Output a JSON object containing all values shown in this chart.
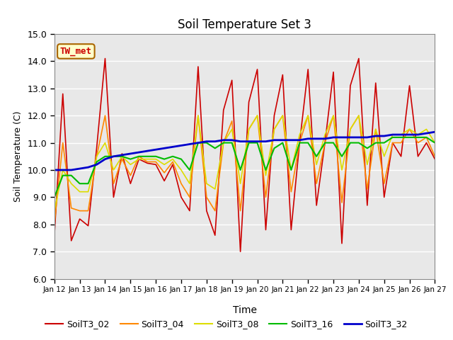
{
  "title": "Soil Temperature Set 3",
  "xlabel": "Time",
  "ylabel": "Soil Temperature (C)",
  "ylim": [
    6.0,
    15.0
  ],
  "yticks": [
    6.0,
    7.0,
    8.0,
    9.0,
    10.0,
    11.0,
    12.0,
    13.0,
    14.0,
    15.0
  ],
  "plot_bg_color": "#e8e8e8",
  "fig_bg_color": "#ffffff",
  "annotation_text": "TW_met",
  "annotation_color": "#cc0000",
  "annotation_bg": "#ffffcc",
  "annotation_border": "#aa6600",
  "series_colors": {
    "SoilT3_02": "#cc0000",
    "SoilT3_04": "#ff8800",
    "SoilT3_08": "#dddd00",
    "SoilT3_16": "#00bb00",
    "SoilT3_32": "#0000cc"
  },
  "xtick_labels": [
    "Jan 12",
    "Jan 13",
    "Jan 14",
    "Jan 15",
    "Jan 16",
    "Jan 17",
    "Jan 18",
    "Jan 19",
    "Jan 20",
    "Jan 21",
    "Jan 22",
    "Jan 23",
    "Jan 24",
    "Jan 25",
    "Jan 26",
    "Jan 27"
  ],
  "SoilT3_02": [
    7.6,
    12.8,
    7.4,
    8.2,
    7.95,
    10.8,
    14.1,
    9.0,
    10.6,
    9.5,
    10.4,
    10.25,
    10.2,
    9.6,
    10.2,
    9.0,
    8.5,
    13.8,
    8.5,
    7.6,
    12.2,
    13.3,
    7.0,
    12.5,
    13.7,
    7.8,
    12.0,
    13.5,
    7.8,
    11.0,
    13.7,
    8.7,
    11.0,
    13.6,
    7.3,
    13.1,
    14.1,
    8.7,
    13.2,
    9.0,
    11.0,
    10.5,
    13.1,
    10.5,
    11.0,
    10.4
  ],
  "SoilT3_04": [
    8.0,
    11.0,
    8.6,
    8.5,
    8.5,
    10.5,
    12.0,
    9.5,
    10.4,
    9.8,
    10.5,
    10.3,
    10.3,
    9.9,
    10.3,
    9.5,
    9.0,
    12.0,
    9.0,
    8.5,
    11.0,
    11.8,
    8.5,
    11.5,
    12.0,
    9.0,
    11.5,
    12.0,
    9.2,
    11.0,
    12.0,
    9.5,
    11.0,
    12.0,
    8.8,
    11.5,
    12.0,
    9.3,
    11.5,
    9.5,
    11.0,
    11.0,
    11.5,
    11.0,
    11.2,
    10.5
  ],
  "SoilT3_08": [
    8.5,
    10.0,
    9.5,
    9.2,
    9.2,
    10.5,
    11.0,
    10.0,
    10.5,
    10.2,
    10.4,
    10.4,
    10.4,
    10.2,
    10.4,
    10.0,
    9.5,
    12.0,
    9.5,
    9.3,
    11.0,
    11.5,
    9.5,
    11.5,
    12.0,
    9.8,
    11.5,
    12.0,
    10.0,
    11.3,
    12.0,
    10.2,
    11.3,
    12.0,
    10.0,
    11.5,
    12.0,
    10.2,
    11.5,
    10.5,
    11.3,
    11.3,
    11.5,
    11.3,
    11.5,
    11.0
  ],
  "SoilT3_16": [
    9.0,
    9.8,
    9.8,
    9.5,
    9.5,
    10.3,
    10.5,
    10.5,
    10.5,
    10.4,
    10.5,
    10.5,
    10.5,
    10.4,
    10.5,
    10.4,
    10.0,
    11.0,
    11.0,
    10.8,
    11.0,
    11.0,
    10.0,
    11.0,
    11.0,
    10.0,
    10.8,
    11.0,
    10.0,
    11.0,
    11.0,
    10.5,
    11.0,
    11.0,
    10.5,
    11.0,
    11.0,
    10.8,
    11.0,
    11.0,
    11.2,
    11.2,
    11.2,
    11.2,
    11.2,
    11.0
  ],
  "SoilT3_32": [
    10.0,
    10.0,
    10.0,
    10.05,
    10.1,
    10.2,
    10.4,
    10.5,
    10.55,
    10.6,
    10.65,
    10.7,
    10.75,
    10.8,
    10.85,
    10.9,
    10.95,
    11.0,
    11.05,
    11.05,
    11.1,
    11.1,
    11.05,
    11.05,
    11.05,
    11.05,
    11.1,
    11.1,
    11.1,
    11.1,
    11.15,
    11.15,
    11.15,
    11.2,
    11.2,
    11.2,
    11.2,
    11.2,
    11.25,
    11.25,
    11.3,
    11.3,
    11.3,
    11.3,
    11.35,
    11.4
  ]
}
